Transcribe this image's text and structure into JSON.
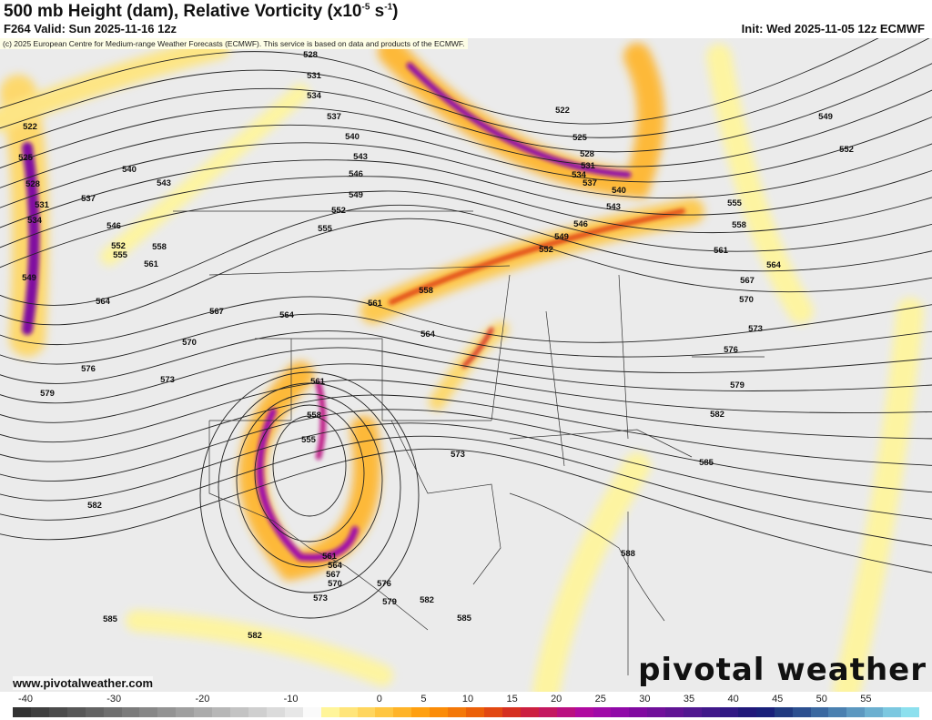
{
  "header": {
    "title": "500 mb Height (dam), Relative Vorticity (x10",
    "title_exp1": "-5",
    "title_mid": " s",
    "title_exp2": "-1",
    "title_end": ")",
    "valid": "F264 Valid: Sun 2025-11-16 12z",
    "init": "Init: Wed 2025-11-05 12z ECMWF"
  },
  "map": {
    "copyright": "(c) 2025 European Centre for Medium-range Weather Forecasts (ECMWF). This service is based on data and products of the ECMWF.",
    "website": "www.pivotalweather.com",
    "logo": "pivotal weather",
    "contour_labels": [
      "528",
      "531",
      "534",
      "537",
      "540",
      "543",
      "546",
      "549",
      "552",
      "555",
      "522",
      "525",
      "528",
      "531",
      "534",
      "537",
      "540",
      "543",
      "546",
      "549",
      "552",
      "555",
      "558",
      "561",
      "564",
      "567",
      "564",
      "570",
      "573",
      "576",
      "579",
      "582",
      "585",
      "582",
      "522",
      "525",
      "528",
      "531",
      "534",
      "537",
      "540",
      "543",
      "546",
      "549",
      "552",
      "555",
      "558",
      "561",
      "564",
      "567",
      "570",
      "573",
      "576",
      "579",
      "582",
      "585",
      "588",
      "549",
      "552",
      "558",
      "561",
      "564",
      "573",
      "561",
      "558",
      "555",
      "561",
      "564",
      "567",
      "570",
      "573",
      "576",
      "579",
      "582",
      "585"
    ]
  },
  "colorbar": {
    "ticks": [
      "-40",
      "-30",
      "-20",
      "-10",
      "0",
      "5",
      "10",
      "15",
      "20",
      "25",
      "30",
      "35",
      "40",
      "45",
      "50",
      "55"
    ],
    "colors": [
      "#333333",
      "#3f3f3f",
      "#4b4b4b",
      "#575757",
      "#636363",
      "#6f6f6f",
      "#7b7b7b",
      "#878787",
      "#939393",
      "#9f9f9f",
      "#ababab",
      "#b7b7b7",
      "#c3c3c3",
      "#cfcfcf",
      "#dbdbdb",
      "#e7e7e7",
      "#fafafa",
      "#fff59a",
      "#ffe57a",
      "#ffd65e",
      "#ffc640",
      "#ffb428",
      "#ffa010",
      "#fb8c08",
      "#f47808",
      "#ec6008",
      "#e24812",
      "#d63020",
      "#cc2040",
      "#c41860",
      "#ba1080",
      "#b00aa0",
      "#a00aa8",
      "#900aa8",
      "#800aa0",
      "#70109a",
      "#601494",
      "#501890",
      "#40188a",
      "#301884",
      "#20187a",
      "#18207a",
      "#203a80",
      "#2c5090",
      "#3a68a0",
      "#4a80b0",
      "#5c98c0",
      "#6cb0d0",
      "#7cc8e0",
      "#8ce0ee"
    ]
  }
}
